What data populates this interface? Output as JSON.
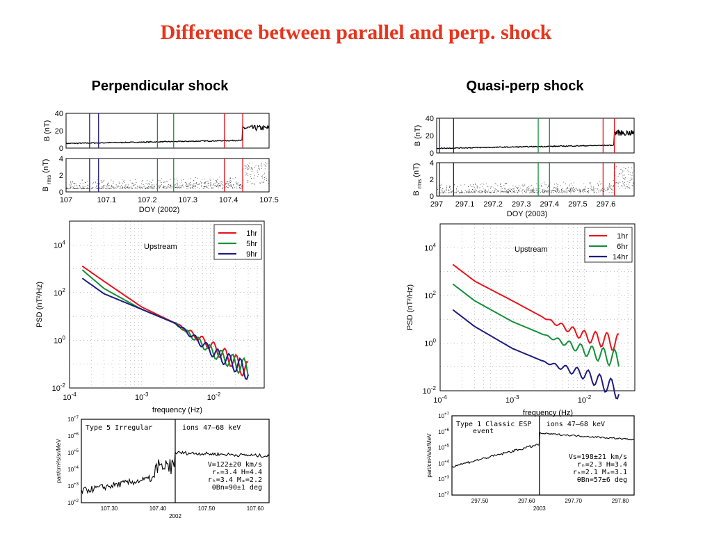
{
  "slide": {
    "title": "Difference between parallel and perp. shock",
    "left_title": "Perpendicular shock",
    "right_title": "Quasi-perp shock"
  },
  "colors": {
    "title": "#e8341c",
    "red": "#e8141c",
    "green": "#13903a",
    "navy": "#1c1c80"
  },
  "panels": [
    {
      "time": {
        "b_label": "B (nT)",
        "brms_label": "B",
        "brms_sub": "rms",
        "brms_unit": "(nT)",
        "b_yticks": [
          "40",
          "20",
          "0"
        ],
        "brms_yticks": [
          "4",
          "2",
          "0"
        ],
        "xticks": [
          "107",
          "107.1",
          "107.2",
          "107.3",
          "107.4",
          "107.5"
        ],
        "xlabel": "DOY (2002)",
        "xrange": [
          107.0,
          107.5
        ],
        "markers": [
          {
            "x": 107.058,
            "color": "navy"
          },
          {
            "x": 107.08,
            "color": "navy"
          },
          {
            "x": 107.225,
            "color": "green"
          },
          {
            "x": 107.265,
            "color": "green"
          },
          {
            "x": 107.39,
            "color": "red"
          },
          {
            "x": 107.435,
            "color": "red"
          }
        ]
      },
      "psd": {
        "ylabel": "PSD (nT²/Hz)",
        "xlabel": "frequency (Hz)",
        "annotation": "Upstream",
        "legend": [
          "1hr",
          "5hr",
          "9hr"
        ]
      },
      "flux": {
        "ylabel": "part/cm²/s/sr/MeV",
        "event": "Type 5 Irregular",
        "ions": "ions 47–68 keV",
        "params": [
          "V=122±20 km/s",
          "rₙ=3.4   H=4.4",
          "rₕ=3.4  Mₐ=2.2",
          "θBn=90±1 deg"
        ],
        "xticks": [
          "107.30",
          "107.40",
          "107.50",
          "107.60"
        ],
        "year": "2002"
      }
    },
    {
      "time": {
        "b_label": "B (nT)",
        "brms_label": "B",
        "brms_sub": "rms",
        "brms_unit": "(nT)",
        "b_yticks": [
          "40",
          "20",
          "0"
        ],
        "brms_yticks": [
          "4",
          "2",
          "0"
        ],
        "xticks": [
          "297",
          "297.1",
          "297.2",
          "297.3",
          "297.4",
          "297.5",
          "297.6"
        ],
        "xlabel": "DOY (2003)",
        "xrange": [
          297.0,
          297.7
        ],
        "markers": [
          {
            "x": 297.01,
            "color": "navy"
          },
          {
            "x": 297.06,
            "color": "navy"
          },
          {
            "x": 297.36,
            "color": "green"
          },
          {
            "x": 297.4,
            "color": "green"
          },
          {
            "x": 297.59,
            "color": "red"
          },
          {
            "x": 297.63,
            "color": "red"
          }
        ]
      },
      "psd": {
        "ylabel": "PSD (nT²/Hz)",
        "xlabel": "frequency (Hz)",
        "annotation": "Upstream",
        "legend": [
          "1hr",
          "6hr",
          "14hr"
        ]
      },
      "flux": {
        "ylabel": "part/cm²/s/sr/MeV",
        "event": "Type 1 Classic ESP",
        "event2": "event",
        "ions": "ions 47–68 keV",
        "params": [
          "Vs=198±21 km/s",
          "rₙ=2.3   H=3.4",
          "rₕ=2.1  Mₐ=3.1",
          "θBn=57±6 deg"
        ],
        "xticks": [
          "297.50",
          "297.60",
          "297.70",
          "297.80"
        ],
        "year": "2003"
      }
    }
  ],
  "chart_data": [
    {
      "type": "line",
      "title": "",
      "xlabel": "frequency (Hz)",
      "ylabel": "PSD (nT²/Hz)",
      "xscale": "log",
      "yscale": "log",
      "xlim": [
        0.0001,
        0.05
      ],
      "ylim": [
        0.01,
        100000
      ],
      "legend_position": "top-right",
      "series": [
        {
          "name": "1hr",
          "color": "#e8141c",
          "x": [
            0.00015,
            0.0003,
            0.001,
            0.003,
            0.01,
            0.03
          ],
          "y": [
            1300,
            300,
            25,
            5,
            0.5,
            0.05
          ]
        },
        {
          "name": "5hr",
          "color": "#13903a",
          "x": [
            0.00015,
            0.0003,
            0.001,
            0.003,
            0.01,
            0.03
          ],
          "y": [
            900,
            150,
            20,
            5,
            0.3,
            0.06
          ]
        },
        {
          "name": "9hr",
          "color": "#1c1c80",
          "x": [
            0.00015,
            0.0003,
            0.001,
            0.003,
            0.01,
            0.03
          ],
          "y": [
            400,
            90,
            20,
            5,
            0.3,
            0.05
          ]
        }
      ]
    },
    {
      "type": "line",
      "title": "",
      "xlabel": "frequency (Hz)",
      "ylabel": "PSD (nT²/Hz)",
      "xscale": "log",
      "yscale": "log",
      "xlim": [
        0.0001,
        0.05
      ],
      "ylim": [
        0.01,
        100000
      ],
      "legend_position": "top-right",
      "series": [
        {
          "name": "1hr",
          "color": "#e8141c",
          "x": [
            0.00015,
            0.0003,
            0.001,
            0.003,
            0.01,
            0.03
          ],
          "y": [
            2000,
            400,
            60,
            10,
            2,
            1
          ]
        },
        {
          "name": "6hr",
          "color": "#13903a",
          "x": [
            0.00015,
            0.0003,
            0.001,
            0.003,
            0.01,
            0.03
          ],
          "y": [
            300,
            60,
            8,
            2,
            0.5,
            0.2
          ]
        },
        {
          "name": "14hr",
          "color": "#1c1c80",
          "x": [
            0.00015,
            0.0003,
            0.001,
            0.003,
            0.01,
            0.03
          ],
          "y": [
            25,
            5,
            0.6,
            0.15,
            0.05,
            0.01
          ]
        }
      ]
    }
  ]
}
